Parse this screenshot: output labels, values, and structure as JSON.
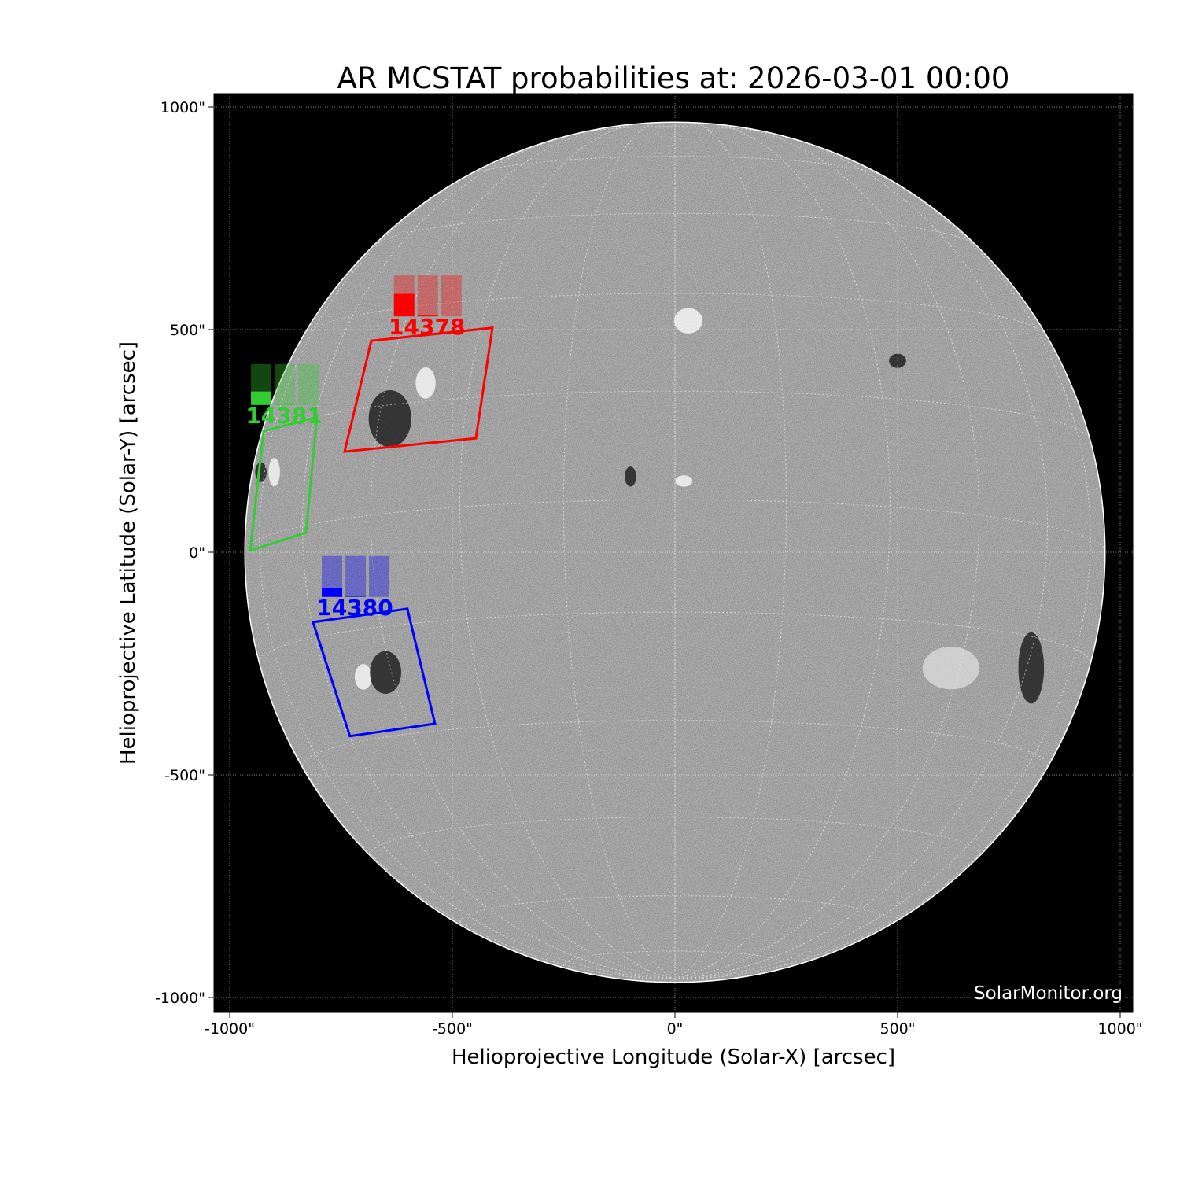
{
  "chart_data": {
    "type": "scatter",
    "title": "AR MCSTAT probabilities at: 2026-03-01 00:00",
    "xlabel": "Helioprojective Longitude (Solar-X) [arcsec]",
    "ylabel": "Helioprojective Latitude (Solar-Y) [arcsec]",
    "xlim": [
      -1035,
      1030
    ],
    "ylim": [
      -1030,
      1032
    ],
    "xticks": [
      -1000,
      -500,
      0,
      500,
      1000
    ],
    "xtick_labels": [
      "-1000\"",
      "-500\"",
      "0\"",
      "500\"",
      "1000\""
    ],
    "yticks": [
      1000,
      500,
      0,
      -500,
      -1000
    ],
    "ytick_labels": [
      "1000\"",
      "500\"",
      "0\"",
      "-500\"",
      "-1000\""
    ],
    "grid": true,
    "solar_radius_arcsec": 966,
    "watermark": "SolarMonitor.org",
    "regions": [
      {
        "number": "14378",
        "color": "#ff0000",
        "label_pos": [
          -557,
          505
        ],
        "probabilities_percent": [
          55,
          2,
          0
        ],
        "contour": [
          [
            -742,
            226
          ],
          [
            -682,
            475
          ],
          [
            -410,
            504
          ],
          [
            -447,
            256
          ]
        ]
      },
      {
        "number": "14381",
        "color": "#33cc33",
        "label_pos": [
          -878,
          306
        ],
        "probabilities_percent": [
          33,
          2,
          0
        ],
        "contour": [
          [
            -954,
            4
          ],
          [
            -924,
            272
          ],
          [
            -804,
            304
          ],
          [
            -829,
            44
          ]
        ]
      },
      {
        "number": "14380",
        "color": "#0000ff",
        "label_pos": [
          -719,
          -125
        ],
        "probabilities_percent": [
          21,
          1,
          0
        ],
        "contour": [
          [
            -813,
            -157
          ],
          [
            -601,
            -127
          ],
          [
            -539,
            -385
          ],
          [
            -730,
            -413
          ]
        ]
      }
    ]
  }
}
